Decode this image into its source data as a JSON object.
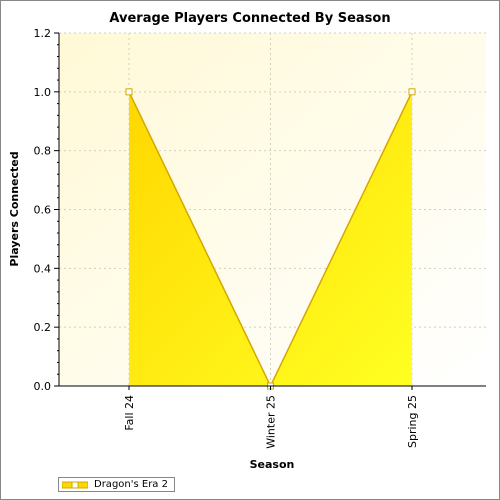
{
  "chart_data": {
    "type": "area",
    "title": "Average Players Connected By Season",
    "xlabel": "Season",
    "ylabel": "Players Connected",
    "categories": [
      "Fall 24",
      "Winter 25",
      "Spring 25"
    ],
    "series": [
      {
        "name": "Dragon's Era 2",
        "values": [
          1.0,
          0.0,
          1.0
        ],
        "color": "#ffd700"
      }
    ],
    "ylim": [
      0,
      1.2
    ],
    "yticks": [
      "0.0",
      "0.2",
      "0.4",
      "0.6",
      "0.8",
      "1.0",
      "1.2"
    ],
    "grid": true,
    "legend_position": "bottom-left"
  },
  "colors": {
    "plot_background": "#fffde6",
    "area_fill_light": "#ffff33",
    "area_fill_dark": "#ffd700",
    "line": "#d4a800",
    "grid": "#d0d0c0"
  }
}
